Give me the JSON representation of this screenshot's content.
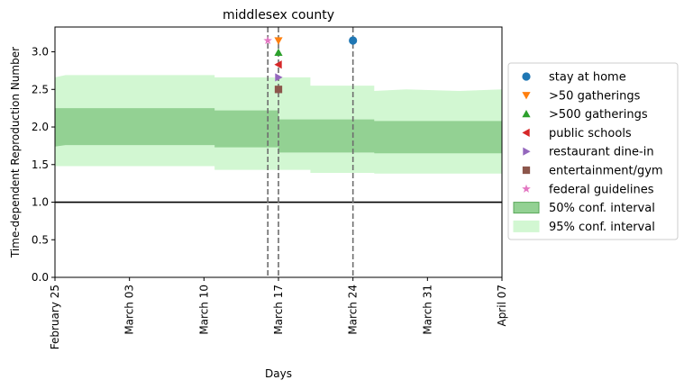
{
  "chart_data": {
    "type": "area",
    "title": "middlesex county",
    "xlabel": "Days",
    "ylabel": "Time-dependent Reproduction Number",
    "x_start": "2020-02-25",
    "x_end": "2020-04-07",
    "ylim": [
      0,
      3.33
    ],
    "yticks": [
      0.0,
      0.5,
      1.0,
      1.5,
      2.0,
      2.5,
      3.0
    ],
    "ytick_labels": [
      "0.0",
      "0.5",
      "1.0",
      "1.5",
      "2.0",
      "2.5",
      "3.0"
    ],
    "xticks": [
      {
        "date": "2020-02-25",
        "label": "February 25"
      },
      {
        "date": "2020-03-03",
        "label": "March 03"
      },
      {
        "date": "2020-03-10",
        "label": "March 10"
      },
      {
        "date": "2020-03-17",
        "label": "March 17"
      },
      {
        "date": "2020-03-24",
        "label": "March 24"
      },
      {
        "date": "2020-03-31",
        "label": "March 31"
      },
      {
        "date": "2020-04-07",
        "label": "April 07"
      }
    ],
    "reference_line": {
      "y": 1.0,
      "color": "#000000"
    },
    "ci95": [
      {
        "date": "2020-02-25",
        "low": 1.48,
        "high": 2.66
      },
      {
        "date": "2020-02-26",
        "low": 1.48,
        "high": 2.69
      },
      {
        "date": "2020-03-11",
        "low": 1.48,
        "high": 2.69
      },
      {
        "date": "2020-03-11",
        "low": 1.43,
        "high": 2.66
      },
      {
        "date": "2020-03-20",
        "low": 1.43,
        "high": 2.66
      },
      {
        "date": "2020-03-20",
        "low": 1.39,
        "high": 2.55
      },
      {
        "date": "2020-03-26",
        "low": 1.39,
        "high": 2.55
      },
      {
        "date": "2020-03-26",
        "low": 1.38,
        "high": 2.48
      },
      {
        "date": "2020-03-29",
        "low": 1.38,
        "high": 2.5
      },
      {
        "date": "2020-04-03",
        "low": 1.38,
        "high": 2.48
      },
      {
        "date": "2020-04-07",
        "low": 1.38,
        "high": 2.5
      }
    ],
    "ci50": [
      {
        "date": "2020-02-25",
        "low": 1.74,
        "high": 2.25
      },
      {
        "date": "2020-02-26",
        "low": 1.76,
        "high": 2.25
      },
      {
        "date": "2020-03-11",
        "low": 1.76,
        "high": 2.25
      },
      {
        "date": "2020-03-11",
        "low": 1.73,
        "high": 2.22
      },
      {
        "date": "2020-03-17",
        "low": 1.73,
        "high": 2.22
      },
      {
        "date": "2020-03-17",
        "low": 1.66,
        "high": 2.1
      },
      {
        "date": "2020-03-26",
        "low": 1.66,
        "high": 2.1
      },
      {
        "date": "2020-03-26",
        "low": 1.65,
        "high": 2.08
      },
      {
        "date": "2020-04-07",
        "low": 1.65,
        "high": 2.08
      }
    ],
    "vlines": [
      {
        "date": "2020-03-16"
      },
      {
        "date": "2020-03-17"
      },
      {
        "date": "2020-03-24"
      }
    ],
    "series": [
      {
        "name": "stay at home",
        "marker": "circle",
        "color": "#1f77b4",
        "date": "2020-03-24",
        "y": 3.15
      },
      {
        "name": ">50 gatherings",
        "marker": "triangle-down",
        "color": "#ff7f0e",
        "date": "2020-03-17",
        "y": 3.15
      },
      {
        "name": ">500 gatherings",
        "marker": "triangle-up",
        "color": "#2ca02c",
        "date": "2020-03-17",
        "y": 2.99
      },
      {
        "name": "public schools",
        "marker": "triangle-left",
        "color": "#d62728",
        "date": "2020-03-17",
        "y": 2.83
      },
      {
        "name": "restaurant dine-in",
        "marker": "triangle-right",
        "color": "#9467bd",
        "date": "2020-03-17",
        "y": 2.66
      },
      {
        "name": "entertainment/gym",
        "marker": "square",
        "color": "#8c564b",
        "date": "2020-03-17",
        "y": 2.5
      },
      {
        "name": "federal guidelines",
        "marker": "star",
        "color": "#e377c2",
        "date": "2020-03-16",
        "y": 3.15
      }
    ],
    "interval_legend": [
      {
        "name": "50% conf. interval",
        "color": "#93d193",
        "edge": "#5aa85a"
      },
      {
        "name": "95% conf. interval",
        "color": "#d2f7d2",
        "edge": "#d2f7d2"
      }
    ],
    "legend_position": "center-right",
    "grid": false
  }
}
